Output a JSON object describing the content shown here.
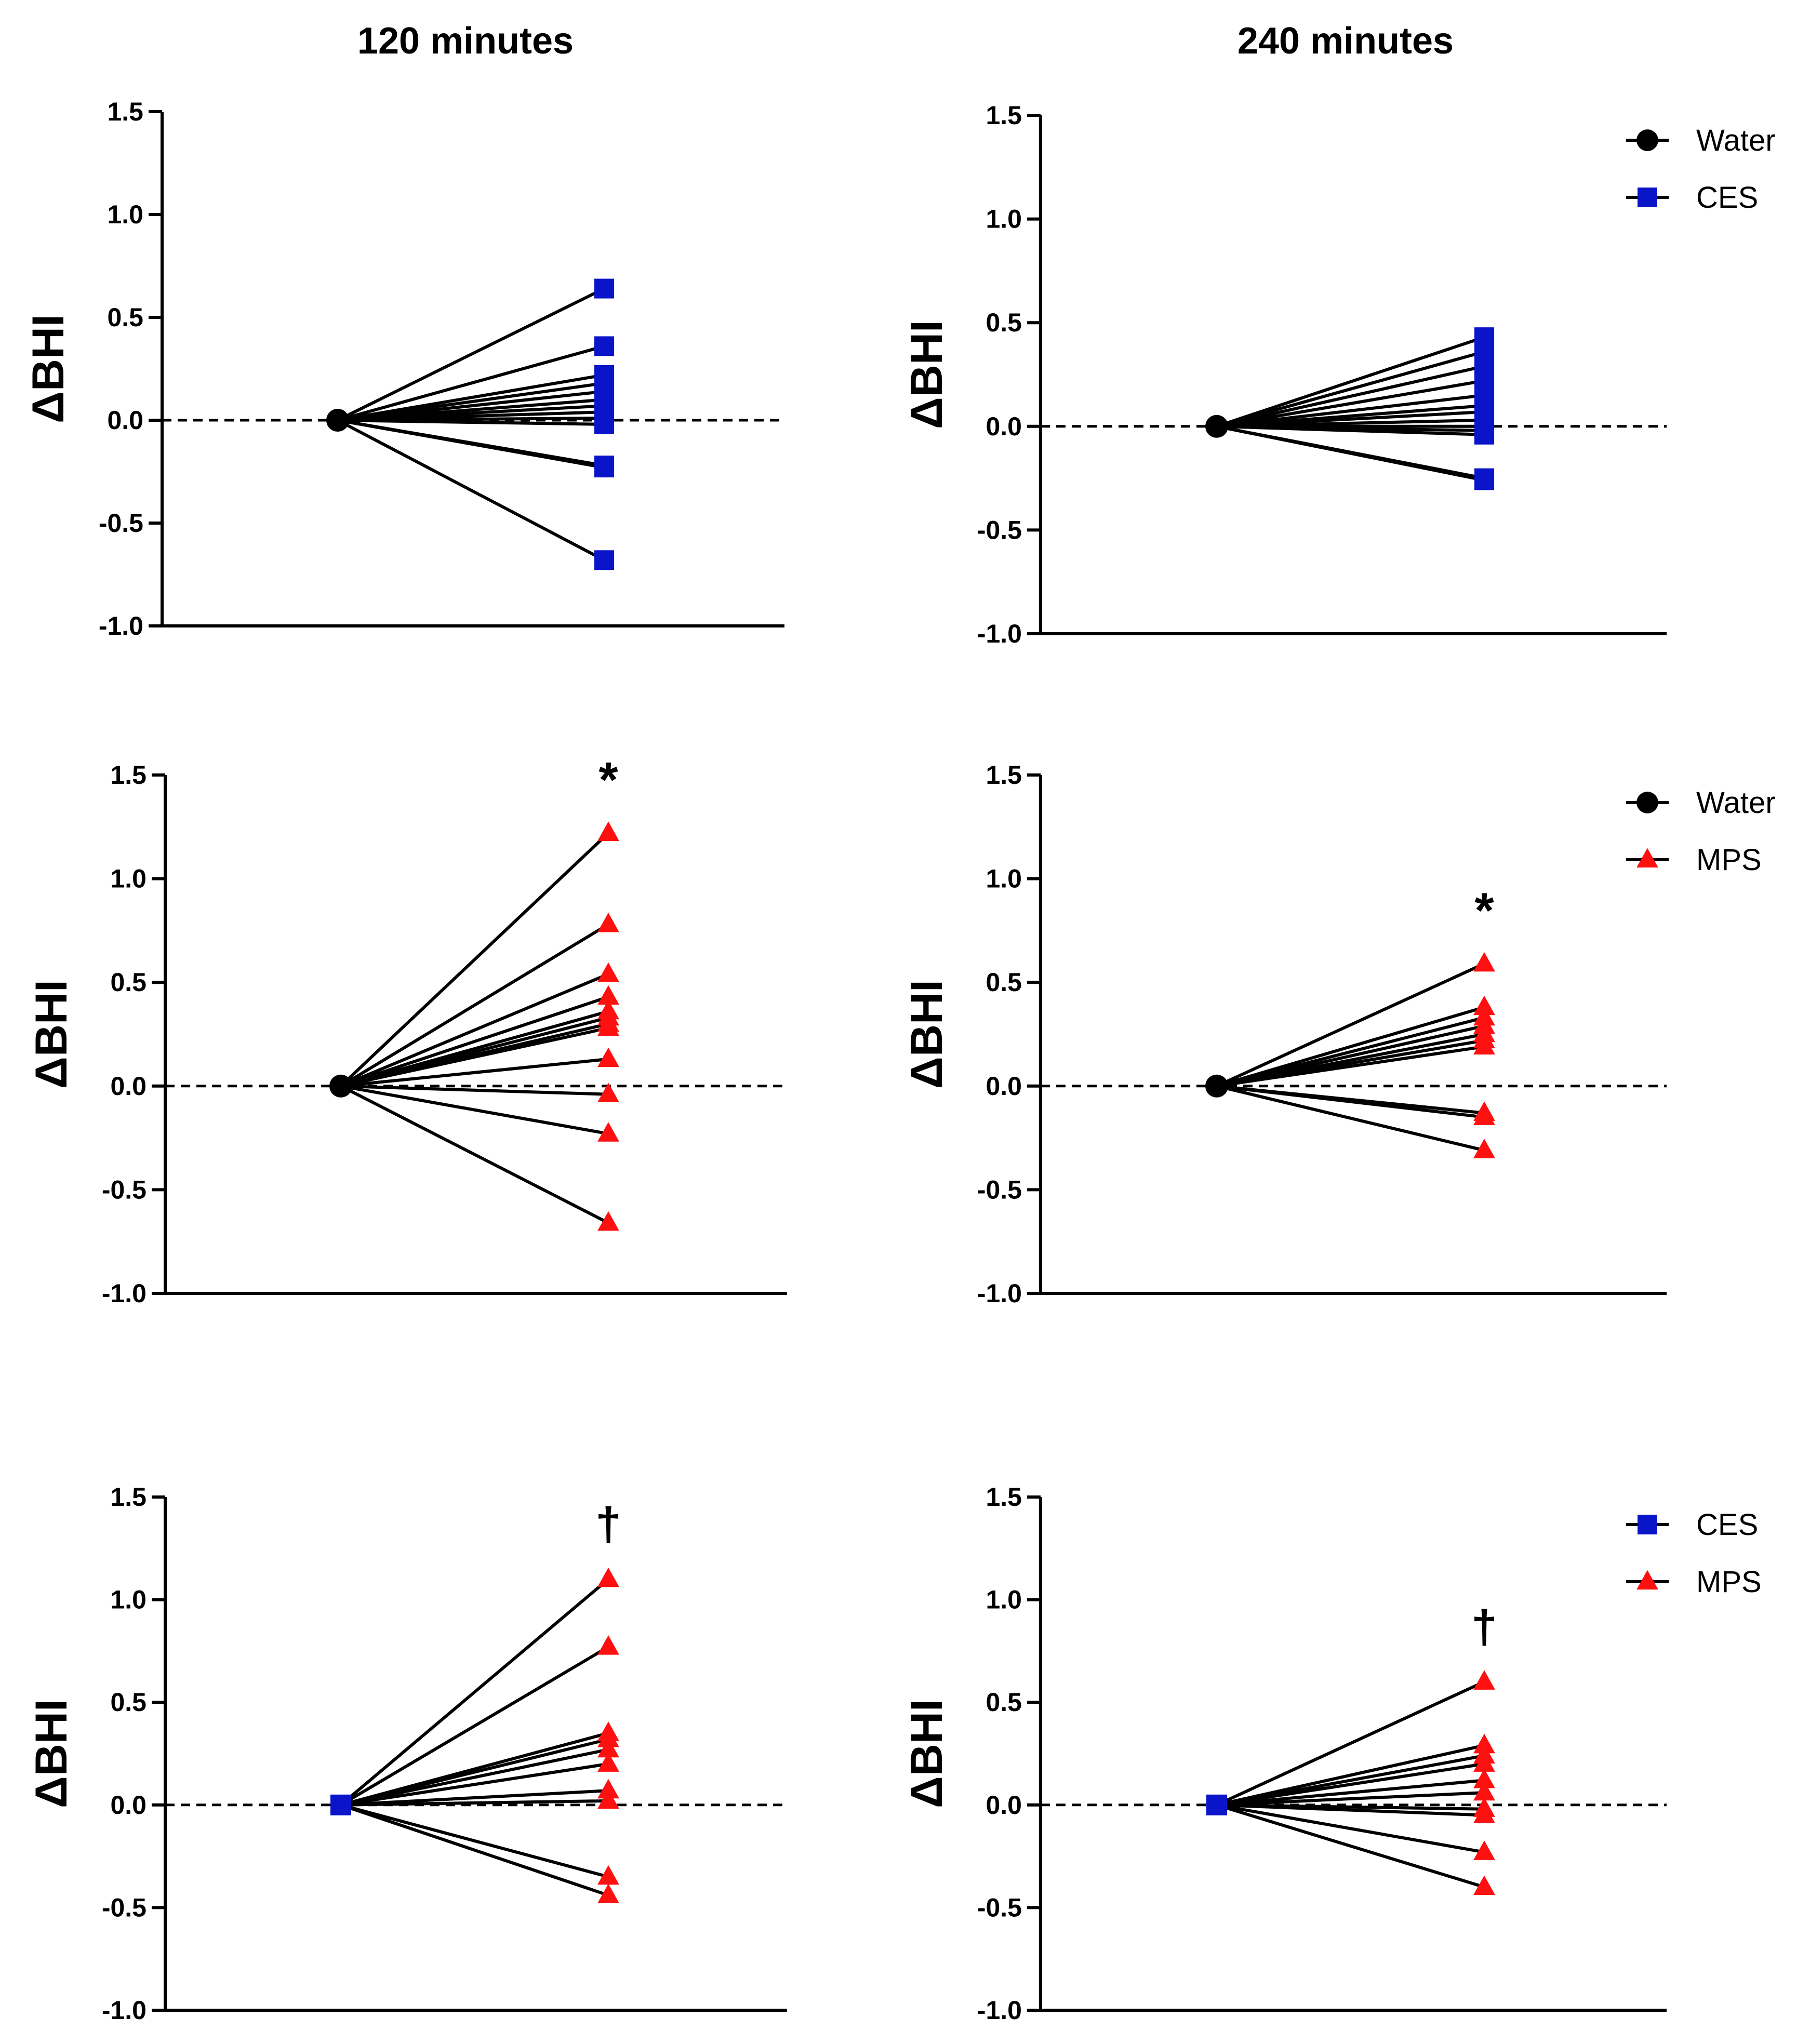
{
  "column_titles": [
    "120 minutes",
    "240 minutes"
  ],
  "chart_data": [
    {
      "type": "line",
      "panel": "row-1-120-minutes",
      "ylabel": "ΔBHI",
      "yticks": [
        "1.5",
        "1.0",
        "0.5",
        "0.0",
        "-0.5",
        "-1.0"
      ],
      "ylim": [
        -1.0,
        1.5
      ],
      "reference_line": 0.0,
      "baseline": {
        "name": "Water",
        "marker": "circle",
        "color": "#000000"
      },
      "comparison": {
        "name": "CES",
        "marker": "square",
        "color": "#0a14c8"
      },
      "values": [
        0.64,
        0.36,
        0.22,
        0.18,
        0.14,
        0.1,
        0.07,
        0.04,
        0.01,
        -0.02,
        -0.22,
        -0.23,
        -0.68
      ],
      "significance": "",
      "legend": []
    },
    {
      "type": "line",
      "panel": "row-1-240-minutes",
      "ylabel": "ΔBHI",
      "yticks": [
        "1.5",
        "1.0",
        "0.5",
        "0.0",
        "-0.5",
        "-1.0"
      ],
      "ylim": [
        -1.0,
        1.5
      ],
      "reference_line": 0.0,
      "baseline": {
        "name": "Water",
        "marker": "circle",
        "color": "#000000"
      },
      "comparison": {
        "name": "CES",
        "marker": "square",
        "color": "#0a14c8"
      },
      "values": [
        0.43,
        0.36,
        0.29,
        0.22,
        0.15,
        0.1,
        0.07,
        0.03,
        0.0,
        -0.02,
        -0.04,
        -0.25,
        -0.26
      ],
      "significance": "",
      "legend": [
        {
          "label": "Water",
          "marker": "circle",
          "color": "#000000"
        },
        {
          "label": "CES",
          "marker": "square",
          "color": "#0a14c8"
        }
      ]
    },
    {
      "type": "line",
      "panel": "row-2-120-minutes",
      "ylabel": "ΔBHI",
      "yticks": [
        "1.5",
        "1.0",
        "0.5",
        "0.0",
        "-0.5",
        "-1.0"
      ],
      "ylim": [
        -1.0,
        1.5
      ],
      "reference_line": 0.0,
      "baseline": {
        "name": "Water",
        "marker": "circle",
        "color": "#000000"
      },
      "comparison": {
        "name": "MPS",
        "marker": "triangle",
        "color": "#ff1010"
      },
      "values": [
        1.22,
        0.78,
        0.54,
        0.43,
        0.36,
        0.33,
        0.3,
        0.28,
        0.13,
        -0.04,
        -0.23,
        -0.66
      ],
      "significance": "*",
      "legend": []
    },
    {
      "type": "line",
      "panel": "row-2-240-minutes",
      "ylabel": "ΔBHI",
      "yticks": [
        "1.5",
        "1.0",
        "0.5",
        "0.0",
        "-0.5",
        "-1.0"
      ],
      "ylim": [
        -1.0,
        1.5
      ],
      "reference_line": 0.0,
      "baseline": {
        "name": "Water",
        "marker": "circle",
        "color": "#000000"
      },
      "comparison": {
        "name": "MPS",
        "marker": "triangle",
        "color": "#ff1010"
      },
      "values": [
        0.59,
        0.38,
        0.33,
        0.29,
        0.25,
        0.22,
        0.19,
        -0.13,
        -0.15,
        -0.31
      ],
      "significance": "*",
      "legend": [
        {
          "label": "Water",
          "marker": "circle",
          "color": "#000000"
        },
        {
          "label": "MPS",
          "marker": "triangle",
          "color": "#ff1010"
        }
      ]
    },
    {
      "type": "line",
      "panel": "row-3-120-minutes",
      "ylabel": "ΔBHI",
      "yticks": [
        "1.5",
        "1.0",
        "0.5",
        "0.0",
        "-0.5",
        "-1.0"
      ],
      "ylim": [
        -1.0,
        1.5
      ],
      "reference_line": 0.0,
      "baseline": {
        "name": "CES",
        "marker": "square",
        "color": "#0a14c8"
      },
      "comparison": {
        "name": "MPS",
        "marker": "triangle",
        "color": "#ff1010"
      },
      "values": [
        1.1,
        0.77,
        0.35,
        0.32,
        0.27,
        0.2,
        0.07,
        0.02,
        -0.35,
        -0.44
      ],
      "significance": "†",
      "legend": []
    },
    {
      "type": "line",
      "panel": "row-3-240-minutes",
      "ylabel": "ΔBHI",
      "yticks": [
        "1.5",
        "1.0",
        "0.5",
        "0.0",
        "-0.5",
        "-1.0"
      ],
      "ylim": [
        -1.0,
        1.5
      ],
      "reference_line": 0.0,
      "baseline": {
        "name": "CES",
        "marker": "square",
        "color": "#0a14c8"
      },
      "comparison": {
        "name": "MPS",
        "marker": "triangle",
        "color": "#ff1010"
      },
      "values": [
        0.6,
        0.29,
        0.24,
        0.2,
        0.12,
        0.06,
        -0.02,
        -0.05,
        -0.23,
        -0.4
      ],
      "significance": "†",
      "legend": [
        {
          "label": "CES",
          "marker": "square",
          "color": "#0a14c8"
        },
        {
          "label": "MPS",
          "marker": "triangle",
          "color": "#ff1010"
        }
      ]
    }
  ]
}
